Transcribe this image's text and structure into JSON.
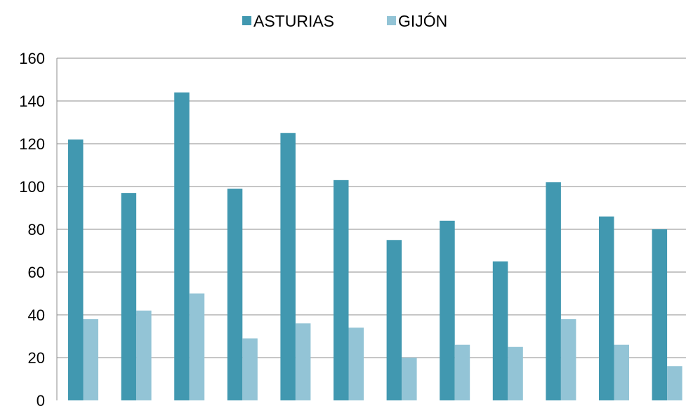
{
  "chart_data": {
    "type": "bar",
    "categories": [
      "",
      "",
      "",
      "",
      "",
      "",
      "",
      "",
      "",
      "",
      "",
      ""
    ],
    "series": [
      {
        "name": "ASTURIAS",
        "color": "#4198b0",
        "values": [
          122,
          97,
          144,
          99,
          125,
          103,
          75,
          84,
          65,
          102,
          86,
          80
        ]
      },
      {
        "name": "GIJÓN",
        "color": "#93c4d6",
        "values": [
          38,
          42,
          50,
          29,
          36,
          34,
          20,
          26,
          25,
          38,
          26,
          16
        ]
      }
    ],
    "ylim": [
      0,
      160
    ],
    "yticks": [
      "0",
      "20",
      "40",
      "60",
      "80",
      "100",
      "120",
      "140",
      "160"
    ],
    "grid": true,
    "legend_position": "top-center"
  }
}
